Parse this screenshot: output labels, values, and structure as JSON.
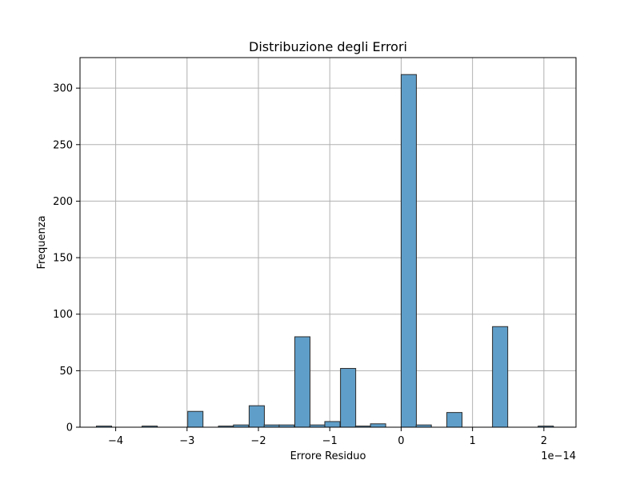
{
  "chart_data": {
    "type": "bar",
    "title": "Distribuzione degli Errori",
    "xlabel": "Errore Residuo",
    "ylabel": "Frequenza",
    "x_offset_label": "1e−14",
    "x_scale": 1e-14,
    "xlim": [
      -4.5,
      2.45
    ],
    "ylim": [
      0,
      327
    ],
    "grid": true,
    "bar_color": "#5f9ec9",
    "edge_color": "#2b2b2b",
    "bin_width": 0.2133,
    "x_ticks": [
      -4,
      -3,
      -2,
      -1,
      0,
      1,
      2
    ],
    "x_tick_labels": [
      "−4",
      "−3",
      "−2",
      "−1",
      "0",
      "1",
      "2"
    ],
    "y_ticks": [
      0,
      50,
      100,
      150,
      200,
      250,
      300
    ],
    "y_tick_labels": [
      "0",
      "50",
      "100",
      "150",
      "200",
      "250",
      "300"
    ],
    "bins": [
      {
        "x0": -4.27,
        "count": 1
      },
      {
        "x0": -3.63,
        "count": 1
      },
      {
        "x0": -2.99,
        "count": 14
      },
      {
        "x0": -2.56,
        "count": 1
      },
      {
        "x0": -2.35,
        "count": 2
      },
      {
        "x0": -2.13,
        "count": 19
      },
      {
        "x0": -1.92,
        "count": 2
      },
      {
        "x0": -1.71,
        "count": 2
      },
      {
        "x0": -1.49,
        "count": 80
      },
      {
        "x0": -1.28,
        "count": 2
      },
      {
        "x0": -1.07,
        "count": 5
      },
      {
        "x0": -0.85,
        "count": 52
      },
      {
        "x0": -0.64,
        "count": 1
      },
      {
        "x0": -0.43,
        "count": 3
      },
      {
        "x0": 0.0,
        "count": 312
      },
      {
        "x0": 0.21,
        "count": 2
      },
      {
        "x0": 0.64,
        "count": 13
      },
      {
        "x0": 1.28,
        "count": 89
      },
      {
        "x0": 1.92,
        "count": 1
      }
    ]
  }
}
